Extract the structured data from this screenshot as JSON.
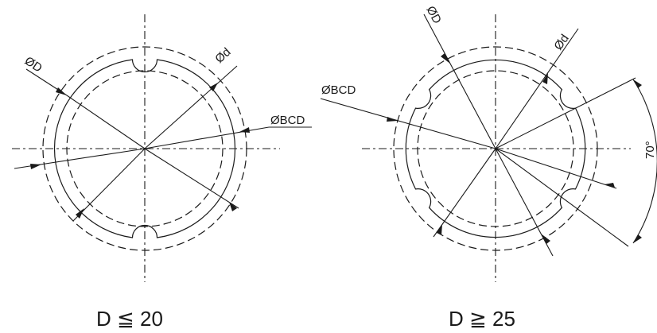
{
  "left_view": {
    "label_D": "ØD",
    "label_d": "Ød",
    "label_BCD": "ØBCD",
    "caption": "D ≦ 20"
  },
  "right_view": {
    "label_D": "ØD",
    "label_d": "Ød",
    "label_BCD": "ØBCD",
    "angle_label": "70°",
    "caption": "D ≧ 25"
  }
}
